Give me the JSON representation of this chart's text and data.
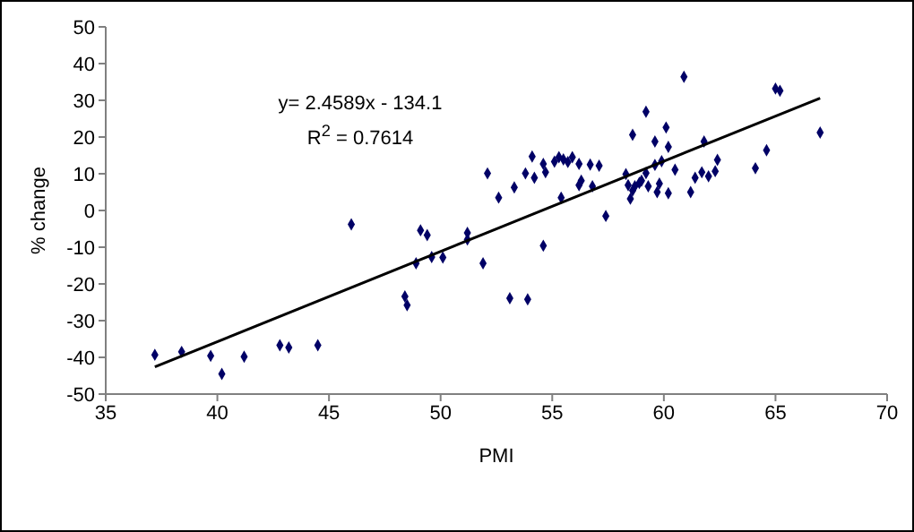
{
  "chart_data": {
    "type": "scatter",
    "xlabel": "PMI",
    "ylabel": "% change",
    "marker": "diamond",
    "legend": false,
    "grid": false,
    "xlim": [
      35,
      70
    ],
    "xticks": [
      35,
      40,
      45,
      50,
      55,
      60,
      65,
      70
    ],
    "ylim": [
      -50,
      50
    ],
    "yticks": [
      -50,
      -40,
      -30,
      -20,
      -10,
      0,
      10,
      20,
      30,
      40,
      50
    ],
    "annotations": [
      "y= 2.4589x - 134.1",
      "R$^{2}$ = 0.7614"
    ],
    "series": [
      {
        "color": "#000066",
        "x": [
          37.2,
          38.4,
          39.7,
          40.2,
          41.2,
          42.8,
          43.2,
          44.5,
          46.0,
          48.4,
          48.5,
          48.9,
          49.1,
          49.4,
          49.6,
          50.1,
          51.2,
          51.2,
          51.9,
          52.1,
          52.6,
          53.1,
          53.3,
          53.9,
          53.8,
          54.1,
          54.2,
          54.6,
          54.6,
          54.7,
          55.1,
          55.3,
          55.5,
          55.7,
          55.9,
          55.4,
          56.2,
          56.2,
          56.3,
          56.7,
          56.8,
          57.1,
          57.4,
          58.3,
          58.4,
          58.5,
          58.6,
          58.6,
          58.7,
          58.9,
          59.0,
          59.2,
          59.2,
          59.3,
          59.6,
          59.6,
          59.7,
          59.8,
          59.9,
          60.1,
          60.2,
          60.2,
          60.5,
          60.9,
          61.2,
          61.4,
          61.7,
          61.8,
          62.0,
          62.3,
          62.4,
          64.1,
          64.6,
          65.0,
          65.2,
          67.0
        ],
        "values": [
          -39.3,
          -38.5,
          -39.6,
          -44.5,
          -39.8,
          -36.7,
          -37.3,
          -36.7,
          -3.8,
          -23.4,
          -25.8,
          -14.4,
          -5.4,
          -6.7,
          -12.7,
          -12.8,
          -6.1,
          -7.9,
          -14.4,
          10.1,
          3.5,
          -23.9,
          6.3,
          -24.2,
          10.1,
          14.7,
          8.9,
          -9.6,
          12.7,
          10.4,
          13.3,
          14.5,
          13.9,
          13.2,
          14.5,
          3.5,
          12.7,
          6.9,
          8.1,
          12.5,
          6.6,
          12.2,
          -1.5,
          9.9,
          6.9,
          3.2,
          20.6,
          5.4,
          6.6,
          7.5,
          8.1,
          26.9,
          10.2,
          6.6,
          18.8,
          12.4,
          5.0,
          7.3,
          13.4,
          22.6,
          17.3,
          4.7,
          11.1,
          36.4,
          5.0,
          8.9,
          10.4,
          18.8,
          9.3,
          10.7,
          13.8,
          11.5,
          16.4,
          33.2,
          32.6,
          21.2
        ]
      },
      {
        "type": "line",
        "marker": "none",
        "color": "#000000",
        "x": [
          37.2,
          67.0
        ],
        "values": [
          -42.6,
          30.6
        ]
      }
    ]
  }
}
